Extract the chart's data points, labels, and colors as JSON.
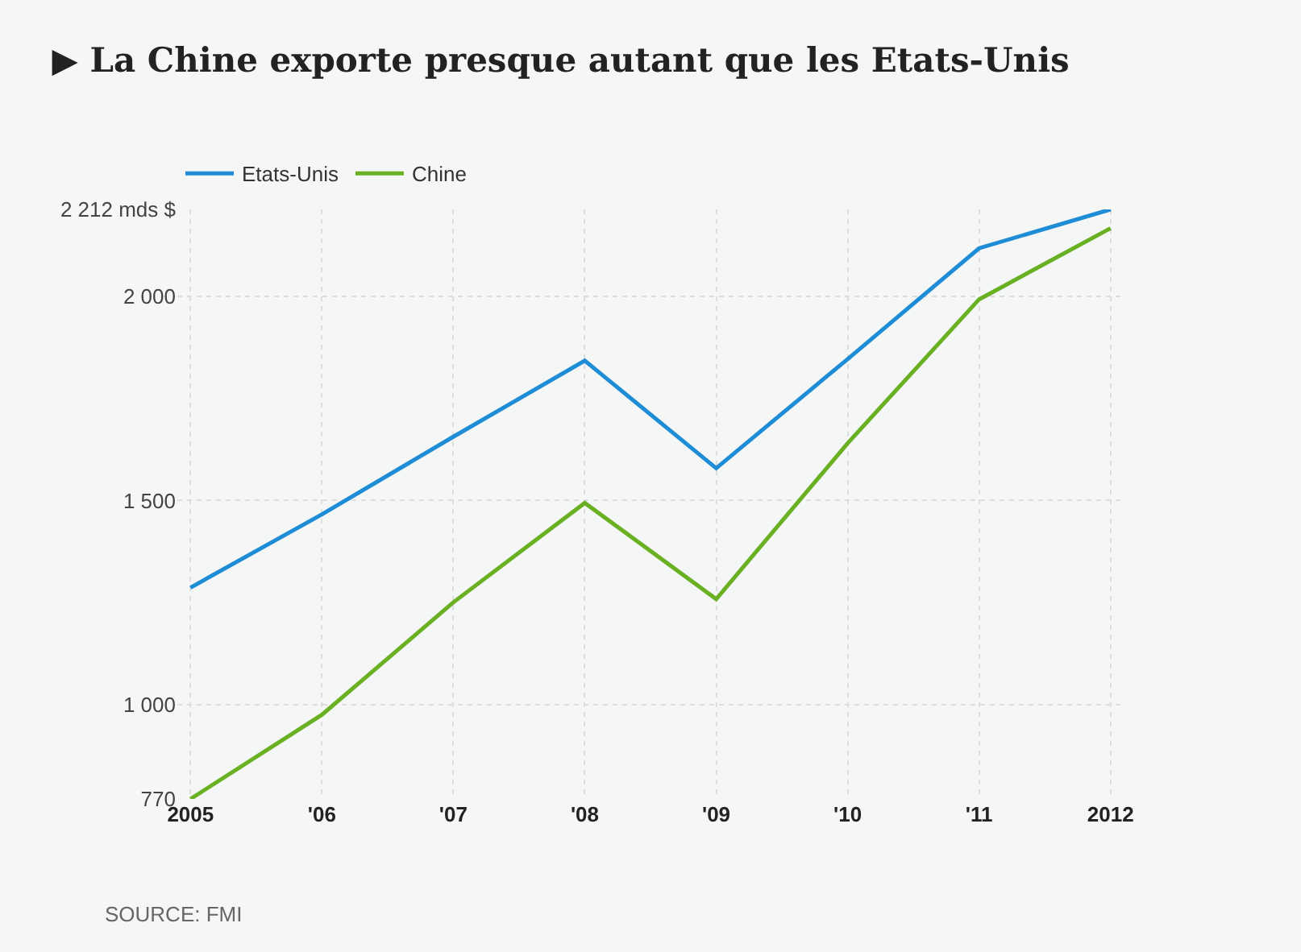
{
  "chart_data": {
    "type": "line",
    "title": "▶ La Chine exporte presque autant que les Etats-Unis",
    "categories": [
      "2005",
      "'06",
      "'07",
      "'08",
      "'09",
      "'10",
      "'11",
      "2012"
    ],
    "series": [
      {
        "name": "Etats-Unis",
        "color": "#1f8dd6",
        "values": [
          1287,
          1466,
          1656,
          1842,
          1579,
          1846,
          2117,
          2212
        ]
      },
      {
        "name": "Chine",
        "color": "#6ab023",
        "values": [
          770,
          976,
          1251,
          1494,
          1259,
          1640,
          1992,
          2166
        ]
      }
    ],
    "ylim": [
      770,
      2212
    ],
    "yticks": [
      770,
      {
        "value": 1000,
        "label": "1 000"
      },
      {
        "value": 1500,
        "label": "1 500"
      },
      {
        "value": 2000,
        "label": "2 000"
      },
      {
        "value": 2212,
        "label": "2 212 mds $"
      }
    ],
    "grid": true,
    "legend": "top left",
    "marker": "none",
    "line_style": "solid",
    "annotations": [
      "SOURCE: FMI"
    ]
  }
}
